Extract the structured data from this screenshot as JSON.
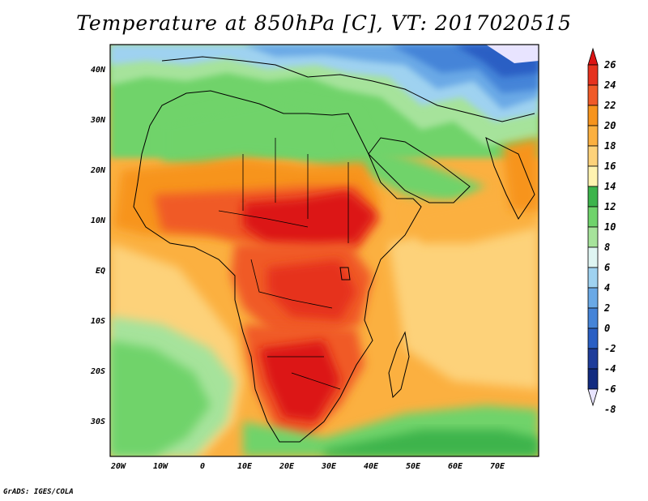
{
  "title": "Temperature at 850hPa [C], VT: 2017020515",
  "credit": "GrADS: IGES/COLA",
  "colors": {
    "deep_red": "#c8141c",
    "red": "#e6321e",
    "red_orange": "#f05a28",
    "orange": "#f7941d",
    "light_orange": "#fbb040",
    "yellow_orange": "#fdd27a",
    "pale_yellow": "#fff3b0",
    "green": "#3cb44b",
    "mid_green": "#6fd36b",
    "light_green": "#a6e39b",
    "pale_cyan": "#dff5f2",
    "sky_blue": "#9fd2f0",
    "mid_blue": "#6aa9e6",
    "blue": "#4584d8",
    "deep_blue": "#2a5fc4",
    "navy": "#1e3c9a",
    "dark_navy": "#0b1f6e",
    "lavender": "#e8e4ff",
    "frame": "#000000"
  },
  "map": {
    "lon_labels": [
      "20W",
      "10W",
      "0",
      "10E",
      "20E",
      "30E",
      "40E",
      "50E",
      "60E",
      "70E"
    ],
    "lat_labels": [
      "40N",
      "30N",
      "20N",
      "10N",
      "EQ",
      "10S",
      "20S",
      "30S"
    ]
  },
  "colorbar": {
    "labels": [
      "26",
      "24",
      "22",
      "20",
      "18",
      "16",
      "14",
      "12",
      "10",
      "8",
      "6",
      "4",
      "2",
      "0",
      "-2",
      "-4",
      "-6",
      "-8"
    ],
    "fills": [
      "#dc1414",
      "#e6321e",
      "#f05a28",
      "#f7941d",
      "#fbb040",
      "#fdd27a",
      "#fff3b0",
      "#3cb44b",
      "#6fd36b",
      "#a6e39b",
      "#dff5f2",
      "#9fd2f0",
      "#6aa9e6",
      "#4584d8",
      "#2a5fc4",
      "#1e3c9a",
      "#122b80",
      "#0b1f6e"
    ]
  }
}
